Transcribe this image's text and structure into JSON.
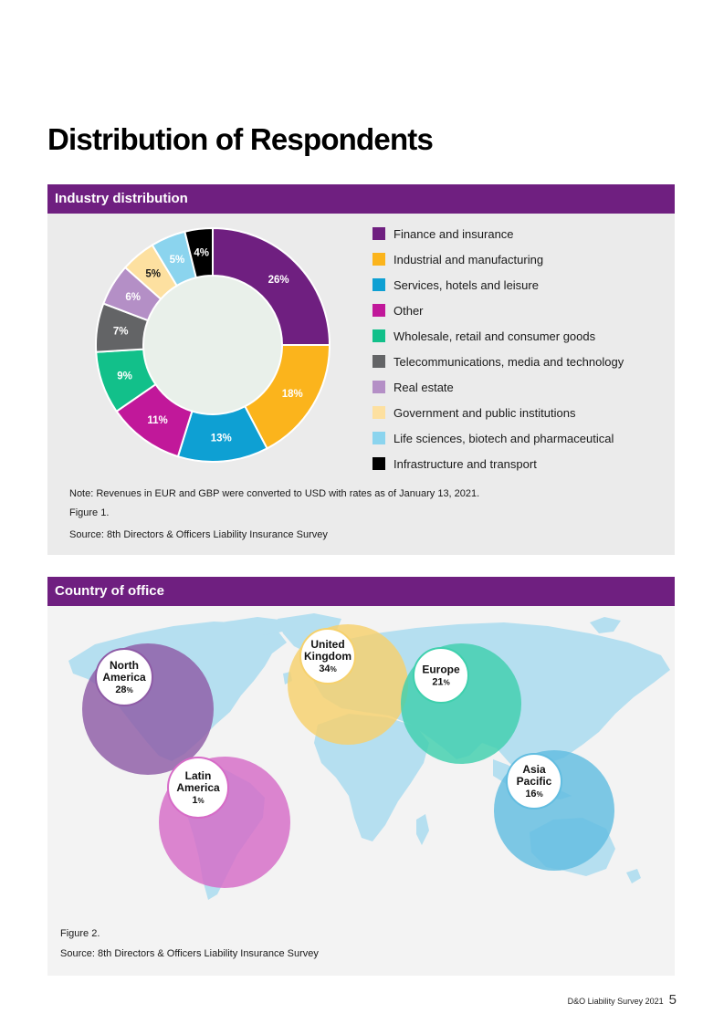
{
  "page": {
    "title": "Distribution of Respondents",
    "footer_text": "D&O Liability Survey 2021",
    "page_number": "5"
  },
  "section1": {
    "header": "Industry distribution",
    "note": "Note: Revenues in EUR and GBP were converted to USD with rates as of January 13, 2021.",
    "figure": "Figure 1.",
    "source": "Source: 8th Directors & Officers Liability Insurance Survey"
  },
  "chart_data": {
    "type": "pie",
    "categories": [
      "Finance and insurance",
      "Industrial and manufacturing",
      "Services, hotels and leisure",
      "Other",
      "Wholesale, retail and consumer goods",
      "Telecommunications, media and technology",
      "Real estate",
      "Government and public institutions",
      "Life sciences, biotech and pharmaceutical",
      "Infrastructure and transport"
    ],
    "values": [
      26,
      18,
      13,
      11,
      9,
      7,
      6,
      5,
      5,
      4
    ],
    "labels": [
      "26%",
      "18%",
      "13%",
      "11%",
      "9%",
      "7%",
      "6%",
      "5%",
      "5%",
      "4%"
    ],
    "colors": [
      "#6f1f80",
      "#fbb41c",
      "#0ea0d3",
      "#c1189a",
      "#12c08a",
      "#636466",
      "#b48fc6",
      "#fde0a0",
      "#8bd4ee",
      "#000000"
    ],
    "label_colors": [
      "#ffffff",
      "#ffffff",
      "#ffffff",
      "#ffffff",
      "#ffffff",
      "#ffffff",
      "#ffffff",
      "#1a1a1a",
      "#ffffff",
      "#ffffff"
    ],
    "center_color": "#e9f0ea",
    "legend_position": "right"
  },
  "section2": {
    "header": "Country of office",
    "figure": "Figure 2.",
    "source": "Source: 8th Directors & Officers Liability Insurance Survey",
    "regions": [
      {
        "lines": [
          "North",
          "America"
        ],
        "value": "28",
        "unit": "%",
        "color": "#8e5ba6"
      },
      {
        "lines": [
          "Latin",
          "America"
        ],
        "value": "1",
        "unit": "%",
        "color": "#d66bc7"
      },
      {
        "lines": [
          "United",
          "Kingdom"
        ],
        "value": "34",
        "unit": "%",
        "color": "#f6d16c"
      },
      {
        "lines": [
          "Europe"
        ],
        "value": "21",
        "unit": "%",
        "color": "#3fd0ad"
      },
      {
        "lines": [
          "Asia",
          "Pacific"
        ],
        "value": "16",
        "unit": "%",
        "color": "#62bde0"
      }
    ]
  }
}
